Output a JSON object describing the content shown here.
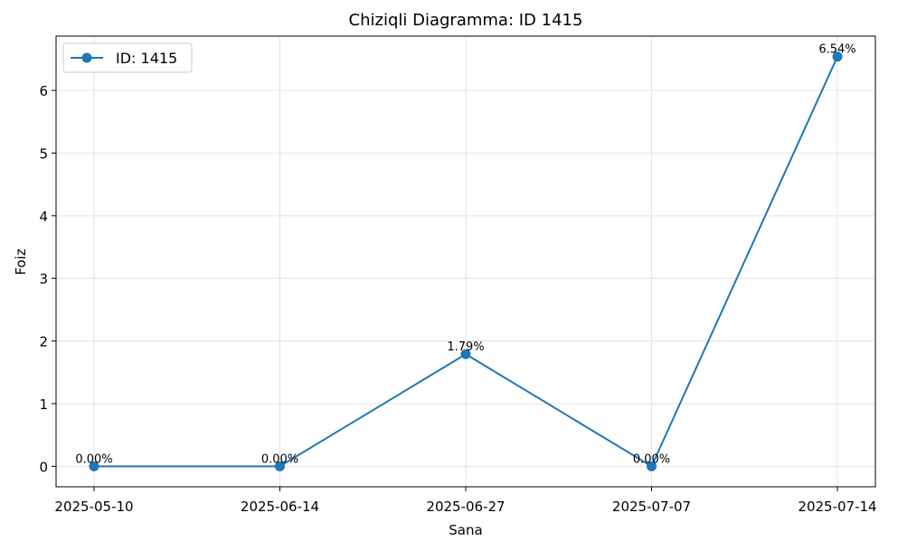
{
  "chart_data": {
    "type": "line",
    "title": "Chiziqli Diagramma: ID 1415",
    "xlabel": "Sana",
    "ylabel": "Foiz",
    "categories": [
      "2025-05-10",
      "2025-06-14",
      "2025-06-27",
      "2025-07-07",
      "2025-07-14"
    ],
    "series": [
      {
        "name": "ID: 1415",
        "values": [
          0.0,
          0.0,
          1.79,
          0.0,
          6.54
        ],
        "labels": [
          "0.00%",
          "0.00%",
          "1.79%",
          "0.00%",
          "6.54%"
        ],
        "color": "#1f77b4",
        "marker": "circle"
      }
    ],
    "yticks": [
      0,
      1,
      2,
      3,
      4,
      5,
      6
    ],
    "ylim": [
      -0.327,
      6.867
    ],
    "grid": true,
    "legend": "top-left"
  }
}
